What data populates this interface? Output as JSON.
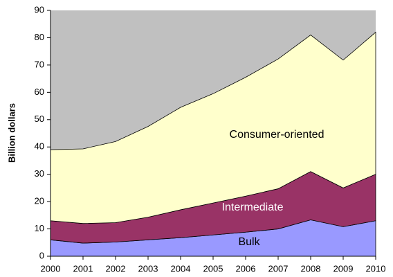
{
  "chart_data": {
    "type": "stacked_area",
    "y_label": "Billion dollars",
    "x": [
      2000,
      2001,
      2002,
      2003,
      2004,
      2005,
      2006,
      2007,
      2008,
      2009,
      2010
    ],
    "xlim": [
      2000,
      2010
    ],
    "xticks": [
      2000,
      2001,
      2002,
      2003,
      2004,
      2005,
      2006,
      2007,
      2008,
      2009,
      2010
    ],
    "ylim": [
      0,
      90
    ],
    "yticks": [
      0,
      10,
      20,
      30,
      40,
      50,
      60,
      70,
      80,
      90
    ],
    "grid": false,
    "background": "#c0c0c0",
    "series": [
      {
        "name": "Bulk",
        "color": "#9999ff",
        "values": [
          6,
          4.8,
          5.2,
          6,
          6.8,
          7.8,
          8.8,
          10,
          13.3,
          10.8,
          13
        ]
      },
      {
        "name": "Intermediate",
        "color": "#993366",
        "values": [
          7,
          7.2,
          7.1,
          8.3,
          10.2,
          11.7,
          13.2,
          14.7,
          17.7,
          14.2,
          17
        ]
      },
      {
        "name": "Consumer-oriented",
        "color": "#ffffcc",
        "values": [
          26,
          27.3,
          29.7,
          33.2,
          37.5,
          40,
          43.5,
          47.5,
          50,
          46.8,
          52
        ]
      }
    ]
  }
}
